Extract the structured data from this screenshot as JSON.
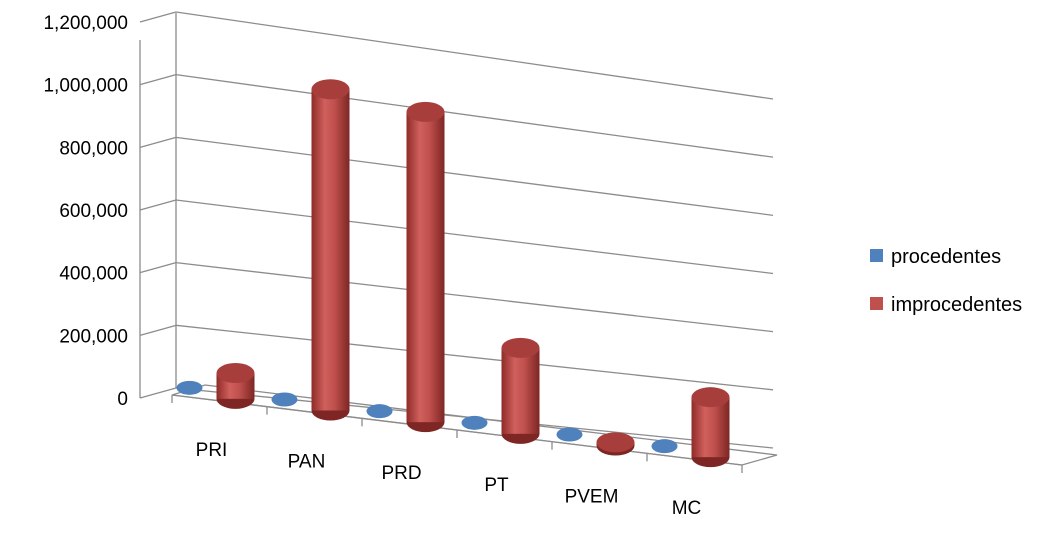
{
  "chart_data": {
    "type": "bar",
    "style": "3d-cylinder",
    "categories": [
      "PRI",
      "PAN",
      "PRD",
      "PT",
      "PVEM",
      "MC"
    ],
    "series": [
      {
        "name": "procedentes",
        "values": [
          5000,
          5000,
          5000,
          5000,
          5000,
          5000
        ]
      },
      {
        "name": "improcedentes",
        "values": [
          80000,
          1000000,
          970000,
          270000,
          10000,
          190000
        ]
      }
    ],
    "y_tick_labels": [
      "0",
      "200,000",
      "400,000",
      "600,000",
      "800,000",
      "1,000,000",
      "1,200,000"
    ],
    "ylim": [
      0,
      1200000
    ],
    "grid": true,
    "legend_position": "right",
    "colors": {
      "procedentes": "#4f81bd",
      "improcedentes": "#c0504d"
    }
  }
}
